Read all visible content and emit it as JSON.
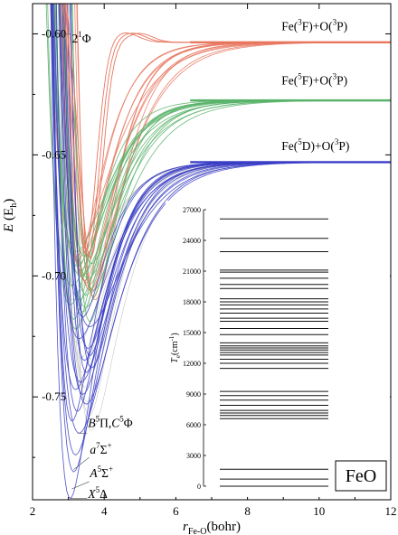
{
  "chart_data": [
    {
      "type": "line",
      "subtype": "potential-energy-curves",
      "xlabel": "r_Fe-O(bohr)",
      "ylabel": "E (E_h)",
      "xlim": [
        2,
        12
      ],
      "ylim": [
        -0.7925,
        -0.5875
      ],
      "xticks": [
        2,
        4,
        6,
        8,
        10,
        12
      ],
      "yticks": [
        -0.6,
        -0.65,
        -0.7,
        -0.75
      ],
      "xtick_labels": [
        "2",
        "4",
        "6",
        "8",
        "10",
        "12"
      ],
      "ytick_labels": [
        "-0.60",
        "-0.65",
        "-0.70",
        "-0.75"
      ],
      "grid": false,
      "colors": {
        "red": "#e8765f",
        "green": "#5bb36b",
        "blue": "#3a3ec6",
        "gray": "#7a7a7a"
      },
      "asymptotes": [
        {
          "label": "Fe(3F)+O(3P)",
          "energy": -0.6035
        },
        {
          "label": "Fe(5F)+O(3P)",
          "energy": -0.6275
        },
        {
          "label": "Fe(5D)+O(3P)",
          "energy": -0.653
        }
      ],
      "state_labels": [
        {
          "label": "2 1Φ"
        },
        {
          "label": "B5Π,C5Φ"
        },
        {
          "label": "a7Σ+"
        },
        {
          "label": "A5Σ+"
        },
        {
          "label": "X5Δ"
        }
      ],
      "series": [
        {
          "group": "Fe(3F)+O(3P)",
          "color": "#e8765f",
          "re_range": [
            3.2,
            3.75
          ],
          "de_range": [
            -0.69,
            -0.71
          ],
          "count": 12,
          "values": [
            {
              "re": 3.2,
              "de": -0.692
            },
            {
              "re": 3.3,
              "de": -0.696
            },
            {
              "re": 3.4,
              "de": -0.7
            },
            {
              "re": 3.5,
              "de": -0.703
            },
            {
              "re": 3.6,
              "de": -0.706
            },
            {
              "re": 3.7,
              "de": -0.709
            },
            {
              "re": 3.25,
              "de": -0.694
            },
            {
              "re": 3.35,
              "de": -0.698
            },
            {
              "re": 3.45,
              "de": -0.702
            },
            {
              "re": 3.55,
              "de": -0.704
            },
            {
              "re": 3.65,
              "de": -0.707
            },
            {
              "re": 3.75,
              "de": -0.71
            }
          ]
        },
        {
          "group": "Fe(5F)+O(3P)",
          "color": "#5bb36b",
          "re_range": [
            3.05,
            3.7
          ],
          "de_range": [
            -0.69,
            -0.722
          ],
          "count": 16,
          "values": [
            {
              "re": 3.05,
              "de": -0.712
            },
            {
              "re": 3.1,
              "de": -0.704
            },
            {
              "re": 3.15,
              "de": -0.718
            },
            {
              "re": 3.2,
              "de": -0.722
            },
            {
              "re": 3.25,
              "de": -0.696
            },
            {
              "re": 3.3,
              "de": -0.71
            },
            {
              "re": 3.35,
              "de": -0.7
            },
            {
              "re": 3.4,
              "de": -0.715
            },
            {
              "re": 3.45,
              "de": -0.692
            },
            {
              "re": 3.5,
              "de": -0.708
            },
            {
              "re": 3.55,
              "de": -0.701
            },
            {
              "re": 3.6,
              "de": -0.719
            },
            {
              "re": 3.65,
              "de": -0.695
            },
            {
              "re": 3.7,
              "de": -0.706
            },
            {
              "re": 3.22,
              "de": -0.69
            },
            {
              "re": 3.48,
              "de": -0.713
            }
          ]
        },
        {
          "group": "Fe(5D)+O(3P)",
          "color": "#3a3ec6",
          "re_range": [
            3.05,
            3.65
          ],
          "de_range": [
            -0.716,
            -0.792
          ],
          "count": 18,
          "values": [
            {
              "re": 3.05,
              "de": -0.792
            },
            {
              "re": 3.15,
              "de": -0.781
            },
            {
              "re": 3.2,
              "de": -0.774
            },
            {
              "re": 3.3,
              "de": -0.765
            },
            {
              "re": 3.1,
              "de": -0.76
            },
            {
              "re": 3.25,
              "de": -0.756
            },
            {
              "re": 3.4,
              "de": -0.749
            },
            {
              "re": 3.35,
              "de": -0.744
            },
            {
              "re": 3.5,
              "de": -0.74
            },
            {
              "re": 3.45,
              "de": -0.735
            },
            {
              "re": 3.55,
              "de": -0.73
            },
            {
              "re": 3.3,
              "de": -0.726
            },
            {
              "re": 3.6,
              "de": -0.721
            },
            {
              "re": 3.4,
              "de": -0.717
            },
            {
              "re": 3.65,
              "de": -0.738
            },
            {
              "re": 3.2,
              "de": -0.747
            },
            {
              "re": 3.5,
              "de": -0.753
            },
            {
              "re": 3.6,
              "de": -0.733
            }
          ]
        }
      ]
    },
    {
      "type": "level-diagram",
      "ylabel": "T_e(cm^-1)",
      "ylim": [
        0,
        27000
      ],
      "yticks": [
        0,
        3000,
        6000,
        9000,
        12000,
        15000,
        18000,
        21000,
        24000,
        27000
      ],
      "ytick_labels": [
        "0",
        "3000",
        "6000",
        "9000",
        "12000",
        "15000",
        "18000",
        "21000",
        "24000",
        "27000"
      ],
      "grid": false,
      "levels": [
        0,
        700,
        1650,
        6600,
        6900,
        7150,
        7400,
        7900,
        8400,
        8850,
        9250,
        11500,
        12000,
        12400,
        12800,
        13050,
        13300,
        13500,
        13700,
        14000,
        14800,
        15400,
        16100,
        16400,
        16900,
        17300,
        17700,
        18000,
        18300,
        19300,
        19700,
        20300,
        20900,
        21100,
        22900,
        24200,
        26100
      ]
    }
  ],
  "title_box": {
    "text": "FeO"
  },
  "annotations": {
    "asymptote_labels": [
      "Fe(3F)+O(3P)",
      "Fe(5F)+O(3P)",
      "Fe(5D)+O(3P)"
    ],
    "state_labels": [
      "2 1Φ",
      "B5Π,C5Φ",
      "a7Σ+",
      "A5Σ+",
      "X5Δ"
    ]
  }
}
